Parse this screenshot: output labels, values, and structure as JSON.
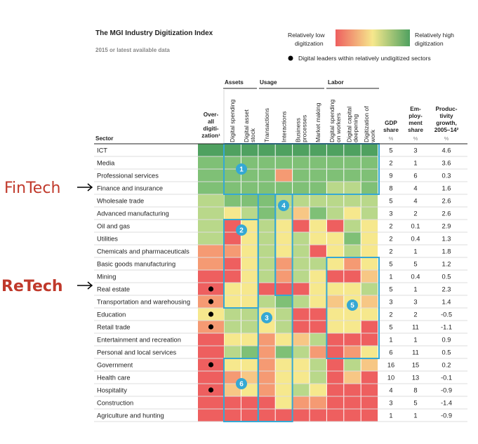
{
  "header": {
    "title": "The MGI Industry Digitization Index",
    "subtitle": "2015 or latest available data",
    "legend_low": [
      "Relatively low",
      "digitization"
    ],
    "legend_high": [
      "Relatively high",
      "digitization"
    ],
    "legend_dot": "Digital leaders within relatively undigitized sectors"
  },
  "side_labels": {
    "fintech": "FinTech",
    "retech": "ReTech"
  },
  "groups": [
    "Assets",
    "Usage",
    "Labor"
  ],
  "column_headers": {
    "sector": "Sector",
    "overall": [
      "Over-",
      "all",
      "digiti-",
      "zation¹"
    ],
    "metrics": [
      [
        "Digital spending"
      ],
      [
        "Digital asset",
        "stock"
      ],
      [
        "Transactions"
      ],
      [
        "Interactions"
      ],
      [
        "Business",
        "processes"
      ],
      [
        "Market making"
      ],
      [
        "Digital spending",
        "on workers"
      ],
      [
        "Digital capital",
        "deepening"
      ],
      [
        "Digitization of",
        "work"
      ]
    ],
    "gdp": [
      "GDP",
      "share"
    ],
    "emp": [
      "Em-",
      "ploy-",
      "ment",
      "share"
    ],
    "prod": [
      "Produc-",
      "tivity",
      "growth,",
      "2005–14²"
    ],
    "unit": "%"
  },
  "colors": {
    "dg": "#4fa160",
    "mg": "#7fc076",
    "lg": "#b9d88a",
    "yl": "#f6e88d",
    "lo": "#f7c785",
    "or": "#f59a73",
    "rd": "#ee5f5f",
    "box": "#35a8d4",
    "badge": "#35a8d4"
  },
  "badges": [
    "1",
    "2",
    "3",
    "4",
    "5",
    "6"
  ],
  "chart_data": {
    "type": "heatmap",
    "sectors": [
      {
        "name": "ICT",
        "overall": "dg",
        "dot": false,
        "cells": [
          "dg",
          "dg",
          "dg",
          "dg",
          "dg",
          "dg",
          "dg",
          "dg",
          "dg"
        ],
        "gdp": "5",
        "emp": "3",
        "prod": "4.6"
      },
      {
        "name": "Media",
        "overall": "mg",
        "dot": false,
        "cells": [
          "mg",
          "mg",
          "mg",
          "mg",
          "mg",
          "mg",
          "mg",
          "mg",
          "mg"
        ],
        "gdp": "2",
        "emp": "1",
        "prod": "3.6"
      },
      {
        "name": "Professional services",
        "overall": "mg",
        "dot": false,
        "cells": [
          "mg",
          "mg",
          "mg",
          "or",
          "mg",
          "mg",
          "mg",
          "mg",
          "mg"
        ],
        "gdp": "9",
        "emp": "6",
        "prod": "0.3"
      },
      {
        "name": "Finance and insurance",
        "overall": "mg",
        "dot": false,
        "cells": [
          "mg",
          "mg",
          "mg",
          "mg",
          "mg",
          "mg",
          "lg",
          "lg",
          "mg"
        ],
        "gdp": "8",
        "emp": "4",
        "prod": "1.6"
      },
      {
        "name": "Wholesale trade",
        "overall": "lg",
        "dot": false,
        "cells": [
          "mg",
          "mg",
          "mg",
          "lg",
          "lg",
          "lg",
          "lg",
          "lg",
          "lg"
        ],
        "gdp": "5",
        "emp": "4",
        "prod": "2.6"
      },
      {
        "name": "Advanced manufacturing",
        "overall": "lg",
        "dot": false,
        "cells": [
          "yl",
          "lg",
          "mg",
          "lg",
          "lo",
          "mg",
          "lg",
          "yl",
          "lg"
        ],
        "gdp": "3",
        "emp": "2",
        "prod": "2.6"
      },
      {
        "name": "Oil and gas",
        "overall": "lg",
        "dot": false,
        "cells": [
          "rd",
          "yl",
          "lg",
          "yl",
          "rd",
          "yl",
          "rd",
          "lg",
          "yl"
        ],
        "gdp": "2",
        "emp": "0.1",
        "prod": "2.9"
      },
      {
        "name": "Utilities",
        "overall": "lg",
        "dot": false,
        "cells": [
          "rd",
          "yl",
          "lg",
          "yl",
          "lg",
          "yl",
          "yl",
          "mg",
          "yl"
        ],
        "gdp": "2",
        "emp": "0.4",
        "prod": "1.3"
      },
      {
        "name": "Chemicals and pharmaceuticals",
        "overall": "or",
        "dot": false,
        "cells": [
          "or",
          "yl",
          "lg",
          "yl",
          "lg",
          "rd",
          "yl",
          "lg",
          "yl"
        ],
        "gdp": "2",
        "emp": "1",
        "prod": "1.8"
      },
      {
        "name": "Basic goods manufacturing",
        "overall": "or",
        "dot": false,
        "cells": [
          "rd",
          "yl",
          "lg",
          "or",
          "lg",
          "lg",
          "yl",
          "or",
          "yl"
        ],
        "gdp": "5",
        "emp": "5",
        "prod": "1.2"
      },
      {
        "name": "Mining",
        "overall": "rd",
        "dot": false,
        "cells": [
          "rd",
          "yl",
          "lg",
          "or",
          "lg",
          "yl",
          "rd",
          "rd",
          "lo"
        ],
        "gdp": "1",
        "emp": "0.4",
        "prod": "0.5"
      },
      {
        "name": "Real estate",
        "overall": "rd",
        "dot": true,
        "cells": [
          "yl",
          "yl",
          "rd",
          "rd",
          "rd",
          "yl",
          "yl",
          "yl",
          "lg"
        ],
        "gdp": "5",
        "emp": "1",
        "prod": "2.3"
      },
      {
        "name": "Transportation and warehousing",
        "overall": "or",
        "dot": true,
        "cells": [
          "yl",
          "yl",
          "lg",
          "mg",
          "lg",
          "yl",
          "lo",
          "yl",
          "lo"
        ],
        "gdp": "3",
        "emp": "3",
        "prod": "1.4"
      },
      {
        "name": "Education",
        "overall": "yl",
        "dot": true,
        "cells": [
          "lg",
          "lg",
          "yl",
          "lg",
          "rd",
          "rd",
          "yl",
          "yl",
          "yl"
        ],
        "gdp": "2",
        "emp": "2",
        "prod": "-0.5"
      },
      {
        "name": "Retail trade",
        "overall": "or",
        "dot": true,
        "cells": [
          "lg",
          "lg",
          "yl",
          "lg",
          "rd",
          "rd",
          "yl",
          "yl",
          "rd"
        ],
        "gdp": "5",
        "emp": "11",
        "prod": "-1.1"
      },
      {
        "name": "Entertainment and recreation",
        "overall": "rd",
        "dot": false,
        "cells": [
          "yl",
          "yl",
          "or",
          "yl",
          "lo",
          "lg",
          "rd",
          "rd",
          "rd"
        ],
        "gdp": "1",
        "emp": "1",
        "prod": "0.9"
      },
      {
        "name": "Personal and local services",
        "overall": "rd",
        "dot": false,
        "cells": [
          "lg",
          "mg",
          "or",
          "mg",
          "lg",
          "or",
          "rd",
          "or",
          "yl"
        ],
        "gdp": "6",
        "emp": "11",
        "prod": "0.5"
      },
      {
        "name": "Government",
        "overall": "rd",
        "dot": true,
        "cells": [
          "yl",
          "yl",
          "or",
          "yl",
          "yl",
          "lg",
          "rd",
          "lg",
          "lo"
        ],
        "gdp": "16",
        "emp": "15",
        "prod": "0.2"
      },
      {
        "name": "Health care",
        "overall": "rd",
        "dot": false,
        "cells": [
          "or",
          "lo",
          "or",
          "yl",
          "yl",
          "lg",
          "rd",
          "lo",
          "rd"
        ],
        "gdp": "10",
        "emp": "13",
        "prod": "-0.1"
      },
      {
        "name": "Hospitality",
        "overall": "rd",
        "dot": true,
        "cells": [
          "lo",
          "yl",
          "or",
          "yl",
          "lg",
          "yl",
          "rd",
          "rd",
          "rd"
        ],
        "gdp": "4",
        "emp": "8",
        "prod": "-0.9"
      },
      {
        "name": "Construction",
        "overall": "rd",
        "dot": false,
        "cells": [
          "rd",
          "rd",
          "rd",
          "yl",
          "or",
          "or",
          "rd",
          "rd",
          "rd"
        ],
        "gdp": "3",
        "emp": "5",
        "prod": "-1.4"
      },
      {
        "name": "Agriculture and hunting",
        "overall": "rd",
        "dot": false,
        "cells": [
          "rd",
          "rd",
          "rd",
          "rd",
          "rd",
          "rd",
          "rd",
          "rd",
          "rd"
        ],
        "gdp": "1",
        "emp": "1",
        "prod": "-0.9"
      }
    ]
  }
}
